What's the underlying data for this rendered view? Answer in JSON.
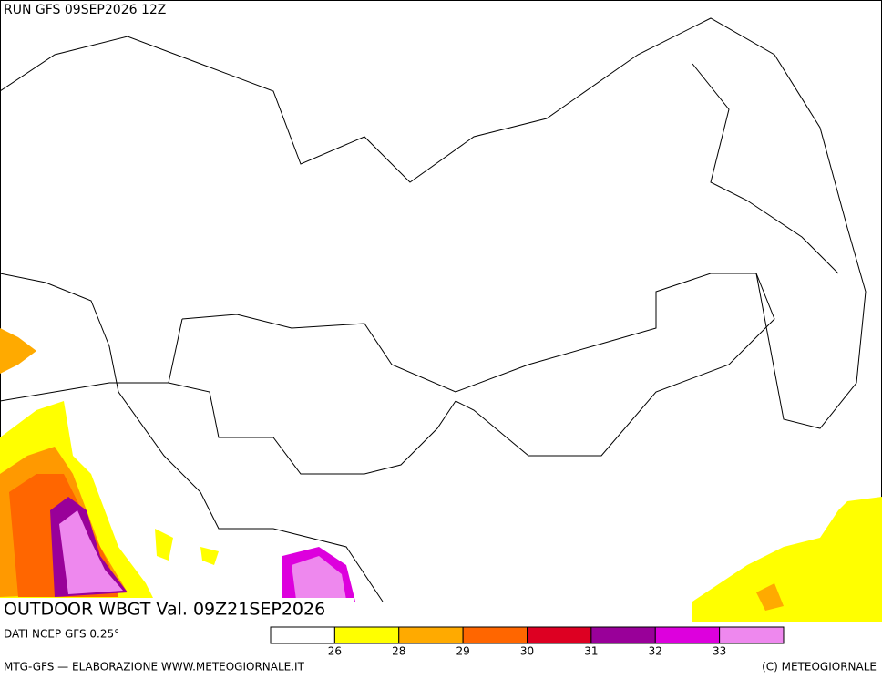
{
  "run": "RUN GFS 09SEP2026 12Z",
  "title": "OUTDOOR WBGT Val. 09Z21SEP2026",
  "source": "DATI NCEP GFS 0.25°",
  "credit": "MTG-GFS — ELABORAZIONE WWW.METEOGIORNALE.IT",
  "copyright": "(C) METEOGIORNALE",
  "legend": {
    "colors": [
      "#ffffff",
      "#ffff00",
      "#ffaa00",
      "#ff6600",
      "#dd0022",
      "#990099",
      "#dd00dd",
      "#ee88ee"
    ],
    "ticks": [
      26,
      28,
      29,
      30,
      31,
      32,
      33
    ]
  }
}
